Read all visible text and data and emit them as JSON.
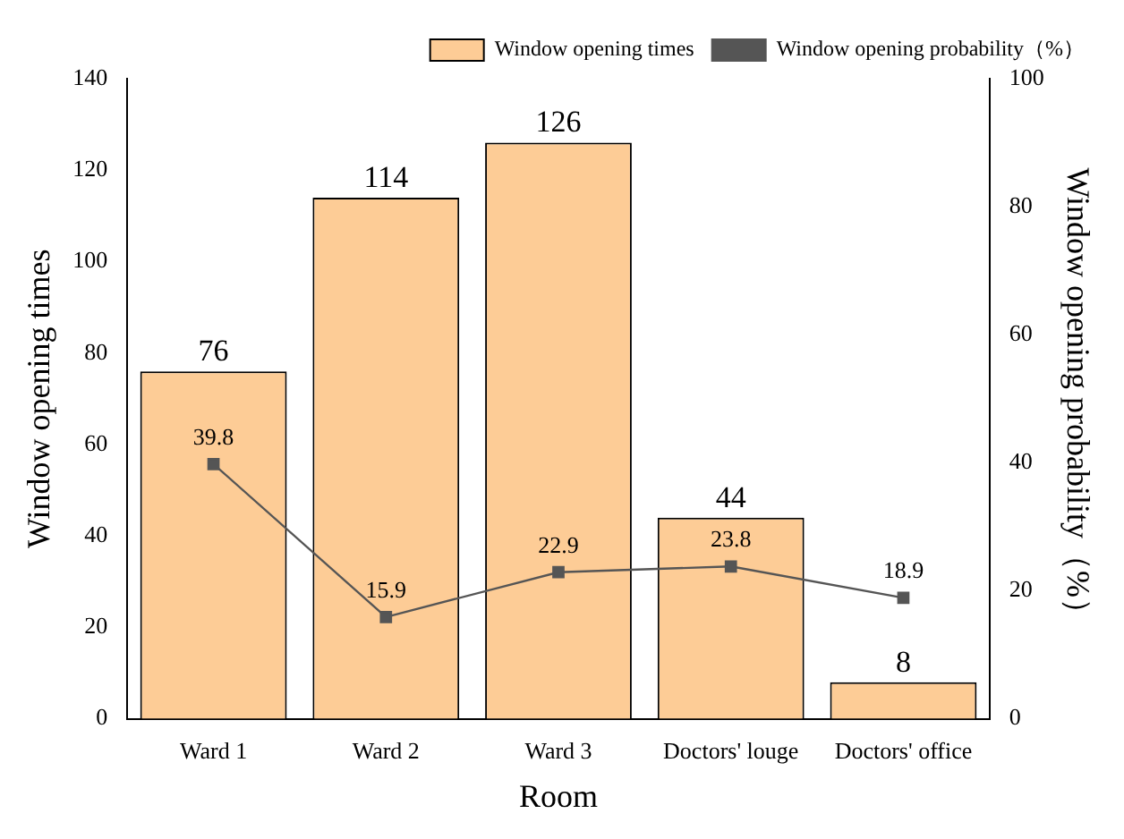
{
  "chart_data": {
    "type": "bar",
    "xlabel": "Room",
    "ylabel": "Window opening times",
    "y2label": "Window opening probability（%）",
    "categories": [
      "Ward 1",
      "Ward 2",
      "Ward 3",
      "Doctors' louge",
      "Doctors' office"
    ],
    "series": [
      {
        "name": "Window opening times",
        "color": "#fdcc96",
        "values": [
          76,
          114,
          126,
          44,
          8
        ]
      },
      {
        "name": "Window opening probability（%）",
        "type": "line",
        "axis": "y2",
        "color": "#555555",
        "values": [
          39.8,
          15.9,
          22.9,
          23.8,
          18.9
        ]
      }
    ],
    "ylim": [
      0,
      140
    ],
    "yticks": [
      0,
      20,
      40,
      60,
      80,
      100,
      120,
      140
    ],
    "y2lim": [
      0,
      100
    ],
    "y2ticks": [
      0,
      20,
      40,
      60,
      80,
      100
    ],
    "grid": false,
    "legend": "top right",
    "marker": "square",
    "line_style": "solid",
    "data_labels": true
  }
}
